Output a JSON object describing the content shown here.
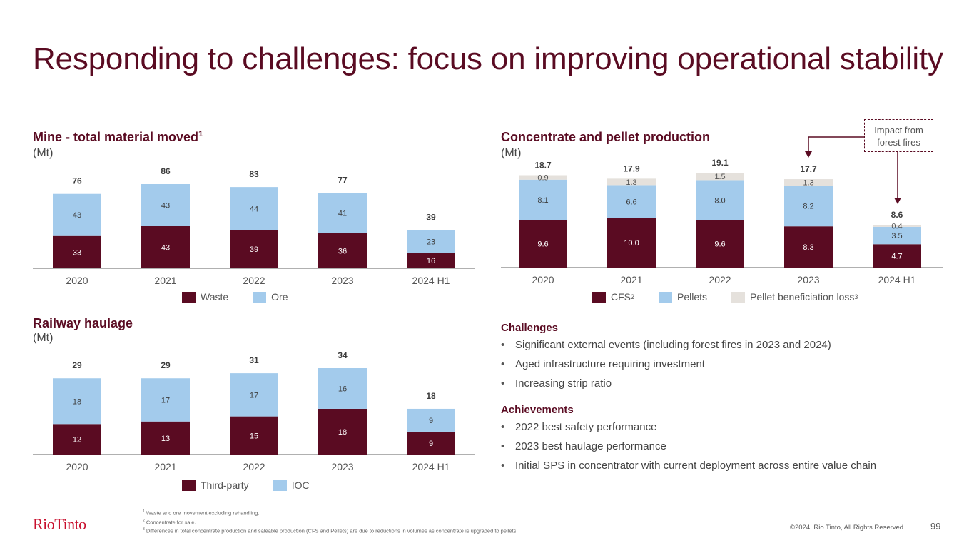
{
  "page": {
    "title": "Responding to challenges: focus on improving operational stability",
    "page_number": "99",
    "copyright": "©2024, Rio Tinto, All Rights Reserved",
    "logo": "RioTinto"
  },
  "colors": {
    "brand": "#5a0b22",
    "dark_series": "#5a0b22",
    "light_series": "#a3cbec",
    "grey_series": "#e5e1dc",
    "axis": "#808080"
  },
  "annotation": {
    "text_line1": "Impact from",
    "text_line2": "forest fires"
  },
  "challenges": {
    "heading": "Challenges",
    "items": [
      "Significant external events (including forest fires in 2023 and 2024)",
      "Aged infrastructure requiring investment",
      "Increasing strip ratio"
    ]
  },
  "achievements": {
    "heading": "Achievements",
    "items": [
      "2022 best safety performance",
      "2023 best haulage performance",
      "Initial SPS in concentrator with current deployment across entire value chain"
    ]
  },
  "footnotes": [
    {
      "num": "1",
      "text": "Waste and ore movement excluding rehandling."
    },
    {
      "num": "2",
      "text": "Concentrate for sale."
    },
    {
      "num": "3",
      "text": "Differences in total concentrate production and saleable production (CFS and Pellets) are due to reductions in volumes as concentrate is upgraded to pellets."
    }
  ],
  "chart_data": [
    {
      "id": "mine",
      "type": "bar",
      "stacked": true,
      "title": "Mine - total material moved",
      "title_sup": "1",
      "unit": "(Mt)",
      "categories": [
        "2020",
        "2021",
        "2022",
        "2023",
        "2024 H1"
      ],
      "series": [
        {
          "name": "Waste",
          "sup": "",
          "color": "#5a0b22",
          "values": [
            33,
            43,
            39,
            36,
            16
          ]
        },
        {
          "name": "Ore",
          "sup": "",
          "color": "#a3cbec",
          "values": [
            43,
            43,
            44,
            41,
            23
          ]
        }
      ],
      "totals": [
        "76",
        "86",
        "83",
        "77",
        "39"
      ],
      "labels": [
        [
          "33",
          "43",
          "39",
          "36",
          "16"
        ],
        [
          "43",
          "43",
          "44",
          "41",
          "23"
        ]
      ],
      "ylim": [
        0,
        86
      ],
      "grid": false,
      "legend_position": "bottom"
    },
    {
      "id": "concentrate",
      "type": "bar",
      "stacked": true,
      "title": "Concentrate and pellet production",
      "title_sup": "",
      "unit": "(Mt)",
      "categories": [
        "2020",
        "2021",
        "2022",
        "2023",
        "2024 H1"
      ],
      "series": [
        {
          "name": "CFS",
          "sup": "2",
          "color": "#5a0b22",
          "values": [
            9.6,
            10.0,
            9.6,
            8.3,
            4.7
          ]
        },
        {
          "name": "Pellets",
          "sup": "",
          "color": "#a3cbec",
          "values": [
            8.1,
            6.6,
            8.0,
            8.2,
            3.5
          ]
        },
        {
          "name": "Pellet beneficiation loss",
          "sup": "3",
          "color": "#e5e1dc",
          "values": [
            0.9,
            1.3,
            1.5,
            1.3,
            0.4
          ]
        }
      ],
      "totals": [
        "18.7",
        "17.9",
        "19.1",
        "17.7",
        "8.6"
      ],
      "labels": [
        [
          "9.6",
          "10.0",
          "9.6",
          "8.3",
          "4.7"
        ],
        [
          "8.1",
          "6.6",
          "8.0",
          "8.2",
          "3.5"
        ],
        [
          "0.9",
          "1.3",
          "1.5",
          "1.3",
          "0.4"
        ]
      ],
      "ylim": [
        0,
        19.1
      ],
      "grid": false,
      "legend_position": "bottom",
      "annotations": [
        "Impact from forest fires → 2023",
        "Impact from forest fires → 2024 H1"
      ]
    },
    {
      "id": "railway",
      "type": "bar",
      "stacked": true,
      "title": "Railway haulage",
      "title_sup": "",
      "unit": "(Mt)",
      "categories": [
        "2020",
        "2021",
        "2022",
        "2023",
        "2024 H1"
      ],
      "series": [
        {
          "name": "Third-party",
          "sup": "",
          "color": "#5a0b22",
          "values": [
            12,
            13,
            15,
            18,
            9
          ]
        },
        {
          "name": "IOC",
          "sup": "",
          "color": "#a3cbec",
          "values": [
            18,
            17,
            17,
            16,
            9
          ]
        }
      ],
      "totals": [
        "29",
        "29",
        "31",
        "34",
        "18"
      ],
      "labels": [
        [
          "12",
          "13",
          "15",
          "18",
          "9"
        ],
        [
          "18",
          "17",
          "17",
          "16",
          "9"
        ]
      ],
      "ylim": [
        0,
        34
      ],
      "grid": false,
      "legend_position": "bottom"
    }
  ]
}
